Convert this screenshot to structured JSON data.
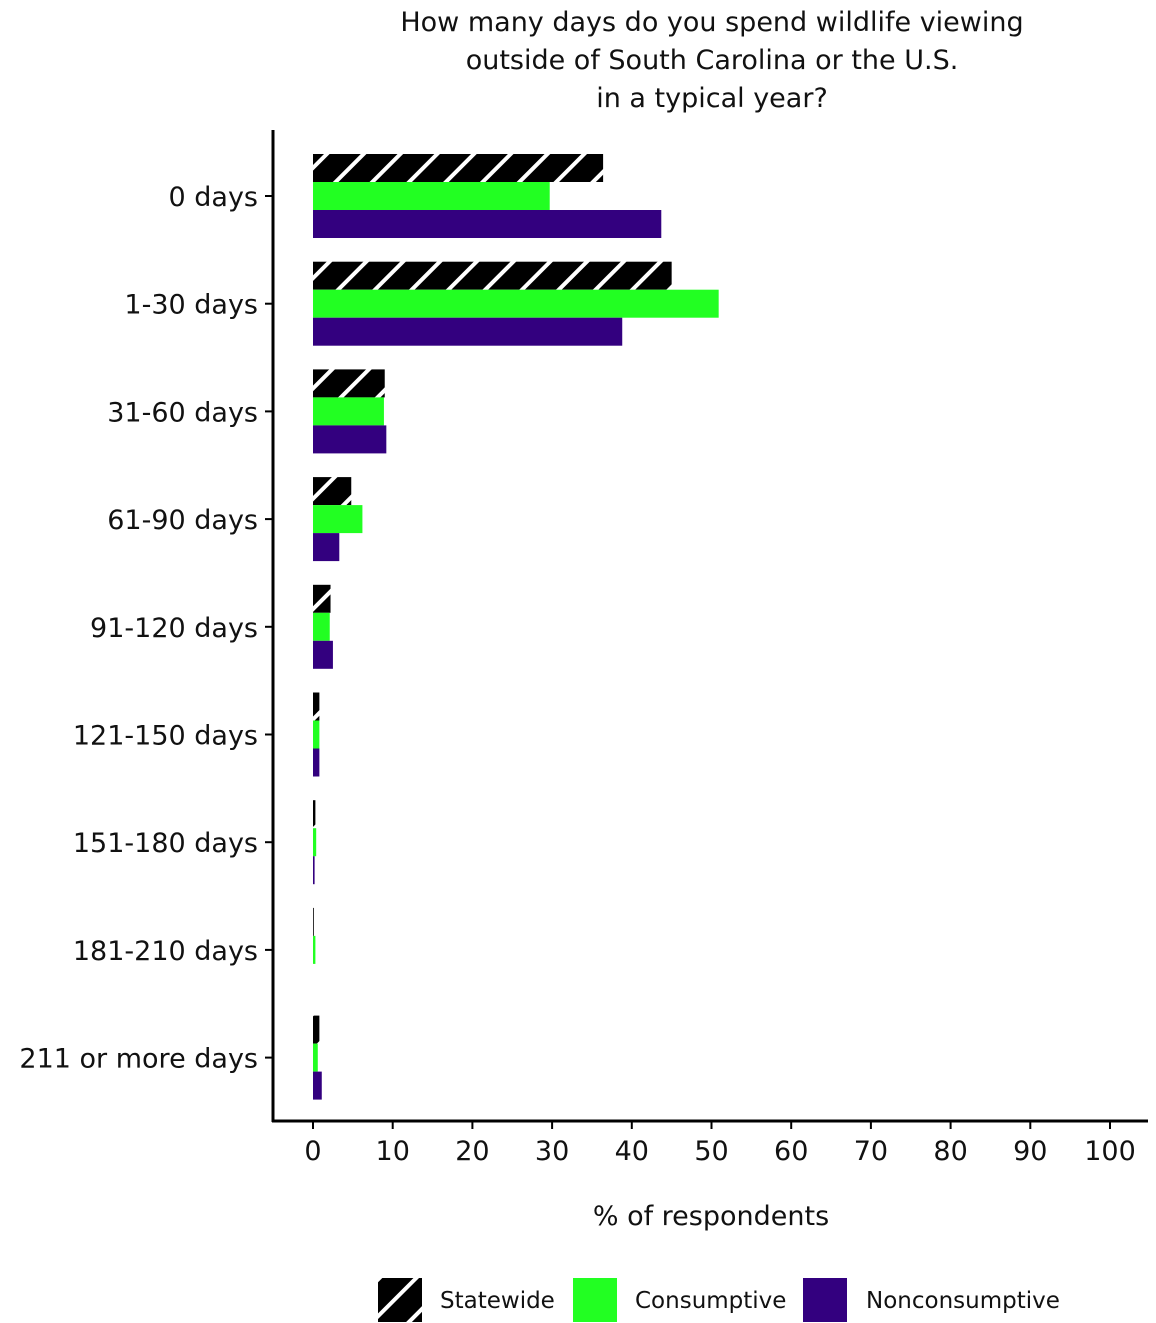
{
  "chart_data": {
    "type": "bar",
    "orientation": "horizontal",
    "title": [
      "How many days do you spend wildlife viewing",
      "outside of South Carolina or the U.S.",
      "in a typical year?"
    ],
    "xlabel": "% of respondents",
    "ylabel": "",
    "xlim": [
      0,
      100
    ],
    "xticks": [
      0,
      10,
      20,
      30,
      40,
      50,
      60,
      70,
      80,
      90,
      100
    ],
    "categories": [
      "0 days",
      "1-30 days",
      "31-60 days",
      "61-90 days",
      "91-120 days",
      "121-150 days",
      "151-180 days",
      "181-210 days",
      "211 or more days"
    ],
    "series": [
      {
        "name": "Statewide",
        "pattern": "hatched",
        "color": "#000000",
        "values": [
          36.4,
          45.0,
          9.0,
          4.8,
          2.2,
          0.8,
          0.3,
          0.1,
          0.8
        ]
      },
      {
        "name": "Consumptive",
        "color": "#22ff22",
        "values": [
          29.7,
          50.9,
          8.9,
          6.2,
          2.1,
          0.8,
          0.4,
          0.3,
          0.6
        ]
      },
      {
        "name": "Nonconsumptive",
        "color": "#33007f",
        "values": [
          43.7,
          38.8,
          9.2,
          3.3,
          2.5,
          0.8,
          0.2,
          0.0,
          1.1
        ]
      }
    ],
    "grid": false,
    "legend_position": "bottom"
  }
}
